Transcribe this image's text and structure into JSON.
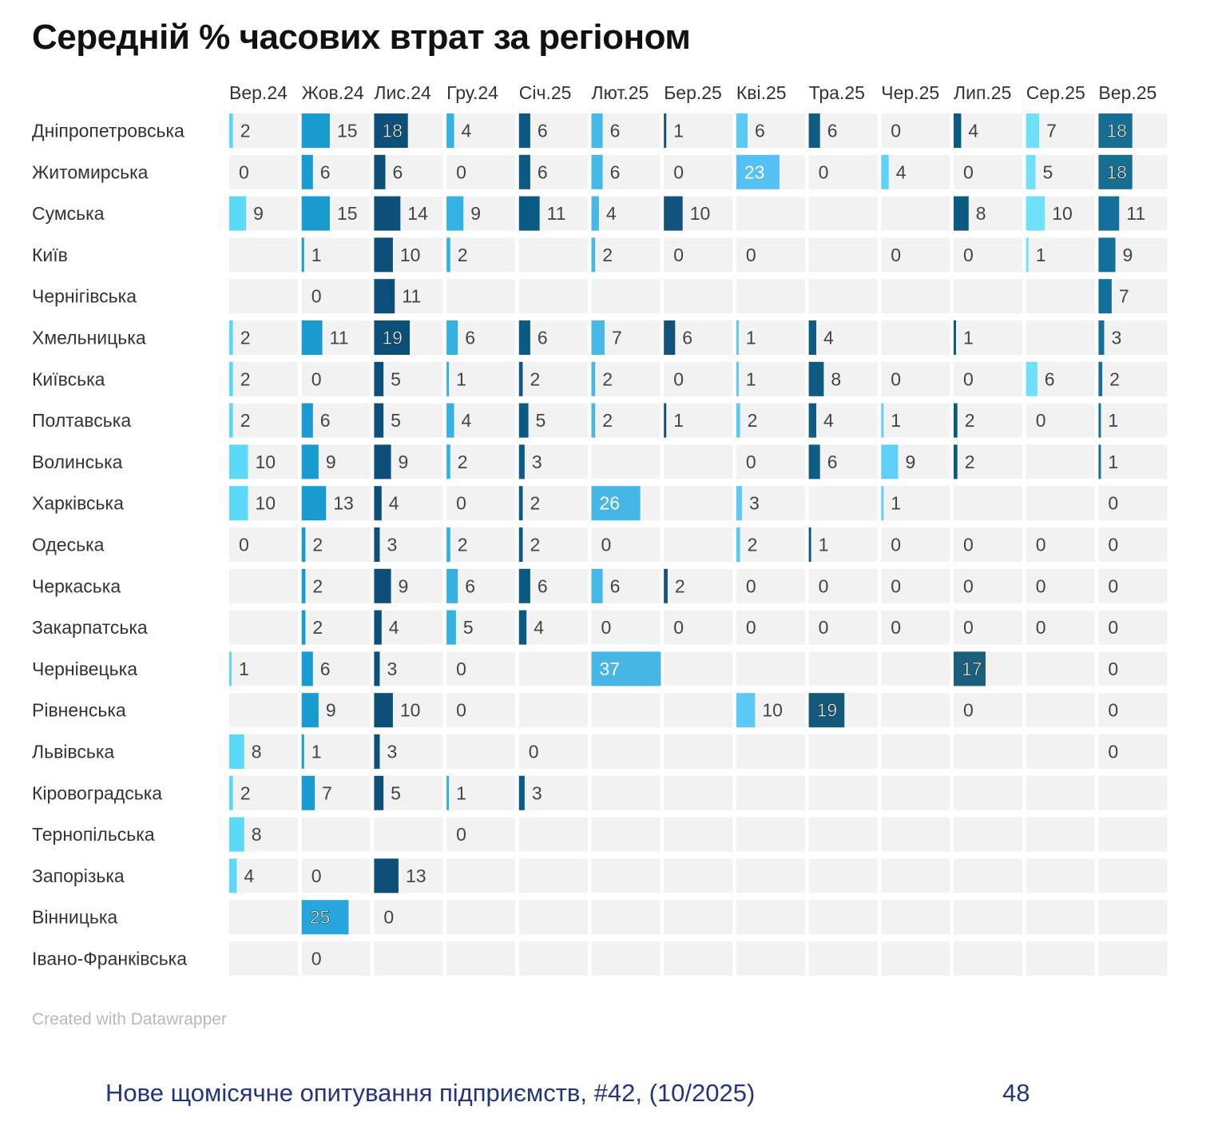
{
  "title": "Середній % часових втрат за регіоном",
  "credit": "Created with Datawrapper",
  "footer": {
    "text": "Нове щомісячне опитування підприємств, #42, (10/2025)",
    "page": "48"
  },
  "chart_data": {
    "type": "table",
    "title": "Середній % часових втрат за регіоном",
    "columns": [
      "Вер.24",
      "Жов.24",
      "Лис.24",
      "Гру.24",
      "Січ.25",
      "Лют.25",
      "Бер.25",
      "Кві.25",
      "Тра.25",
      "Чер.25",
      "Лип.25",
      "Сер.25",
      "Вер.25"
    ],
    "rows": [
      {
        "region": "Дніпропетровська",
        "values": [
          2,
          15,
          18,
          4,
          6,
          6,
          1,
          6,
          6,
          0,
          4,
          7,
          18
        ]
      },
      {
        "region": "Житомирська",
        "values": [
          0,
          6,
          6,
          0,
          6,
          6,
          0,
          23,
          0,
          4,
          0,
          5,
          18
        ]
      },
      {
        "region": "Сумська",
        "values": [
          9,
          15,
          14,
          9,
          11,
          4,
          10,
          null,
          null,
          null,
          8,
          10,
          11
        ]
      },
      {
        "region": "Київ",
        "values": [
          null,
          1,
          10,
          2,
          null,
          2,
          0,
          0,
          null,
          0,
          0,
          1,
          9
        ]
      },
      {
        "region": "Чернігівська",
        "values": [
          null,
          0,
          11,
          null,
          null,
          null,
          null,
          null,
          null,
          null,
          null,
          null,
          7
        ]
      },
      {
        "region": "Хмельницька",
        "values": [
          2,
          11,
          19,
          6,
          6,
          7,
          6,
          1,
          4,
          null,
          1,
          null,
          3
        ]
      },
      {
        "region": "Київська",
        "values": [
          2,
          0,
          5,
          1,
          2,
          2,
          0,
          1,
          8,
          0,
          0,
          6,
          2
        ]
      },
      {
        "region": "Полтавська",
        "values": [
          2,
          6,
          5,
          4,
          5,
          2,
          1,
          2,
          4,
          1,
          2,
          0,
          1
        ]
      },
      {
        "region": "Волинська",
        "values": [
          10,
          9,
          9,
          2,
          3,
          null,
          null,
          0,
          6,
          9,
          2,
          null,
          1
        ]
      },
      {
        "region": "Харківська",
        "values": [
          10,
          13,
          4,
          0,
          2,
          26,
          null,
          3,
          null,
          1,
          null,
          null,
          0
        ]
      },
      {
        "region": "Одеська",
        "values": [
          0,
          2,
          3,
          2,
          2,
          0,
          null,
          2,
          1,
          0,
          0,
          0,
          0
        ]
      },
      {
        "region": "Черкаська",
        "values": [
          null,
          2,
          9,
          6,
          6,
          6,
          2,
          0,
          0,
          0,
          0,
          0,
          0
        ]
      },
      {
        "region": "Закарпатська",
        "values": [
          null,
          2,
          4,
          5,
          4,
          0,
          0,
          0,
          0,
          0,
          0,
          0,
          0
        ]
      },
      {
        "region": "Чернівецька",
        "values": [
          1,
          6,
          3,
          0,
          null,
          37,
          null,
          null,
          null,
          null,
          17,
          null,
          0
        ]
      },
      {
        "region": "Рівненська",
        "values": [
          null,
          9,
          10,
          0,
          null,
          null,
          null,
          10,
          19,
          null,
          0,
          null,
          0
        ]
      },
      {
        "region": "Львівська",
        "values": [
          8,
          1,
          3,
          null,
          0,
          null,
          null,
          null,
          null,
          null,
          null,
          null,
          0
        ]
      },
      {
        "region": "Кіровоградська",
        "values": [
          2,
          7,
          5,
          1,
          3,
          null,
          null,
          null,
          null,
          null,
          null,
          null,
          null
        ]
      },
      {
        "region": "Тернопільська",
        "values": [
          8,
          null,
          null,
          0,
          null,
          null,
          null,
          null,
          null,
          null,
          null,
          null,
          null
        ]
      },
      {
        "region": "Запорізька",
        "values": [
          4,
          0,
          13,
          null,
          null,
          null,
          null,
          null,
          null,
          null,
          null,
          null,
          null
        ]
      },
      {
        "region": "Вінницька",
        "values": [
          null,
          25,
          0,
          null,
          null,
          null,
          null,
          null,
          null,
          null,
          null,
          null,
          null
        ]
      },
      {
        "region": "Івано-Франківська",
        "values": [
          null,
          0,
          null,
          null,
          null,
          null,
          null,
          null,
          null,
          null,
          null,
          null,
          null
        ]
      }
    ],
    "column_colors": [
      "#5ed8f7",
      "#1a9bcf",
      "#0c4f78",
      "#33b1e0",
      "#0c5a84",
      "#45b8e8",
      "#11537c",
      "#5bc8f6",
      "#0f5c83",
      "#5fd1f8",
      "#0b5a80",
      "#6ee0f8",
      "#12709b"
    ],
    "emphasis_colors": {
      "Кві.25": "#55c1f2",
      "Лют.25": "#46b6e6",
      "Лип.25": "#1b5f7c",
      "Тра.25": "#145979",
      "Вер.25": "#166f92",
      "Жов.24": "#27a6dd"
    },
    "cell_background": "#f2f2f2",
    "bar_scale_max": 37
  }
}
